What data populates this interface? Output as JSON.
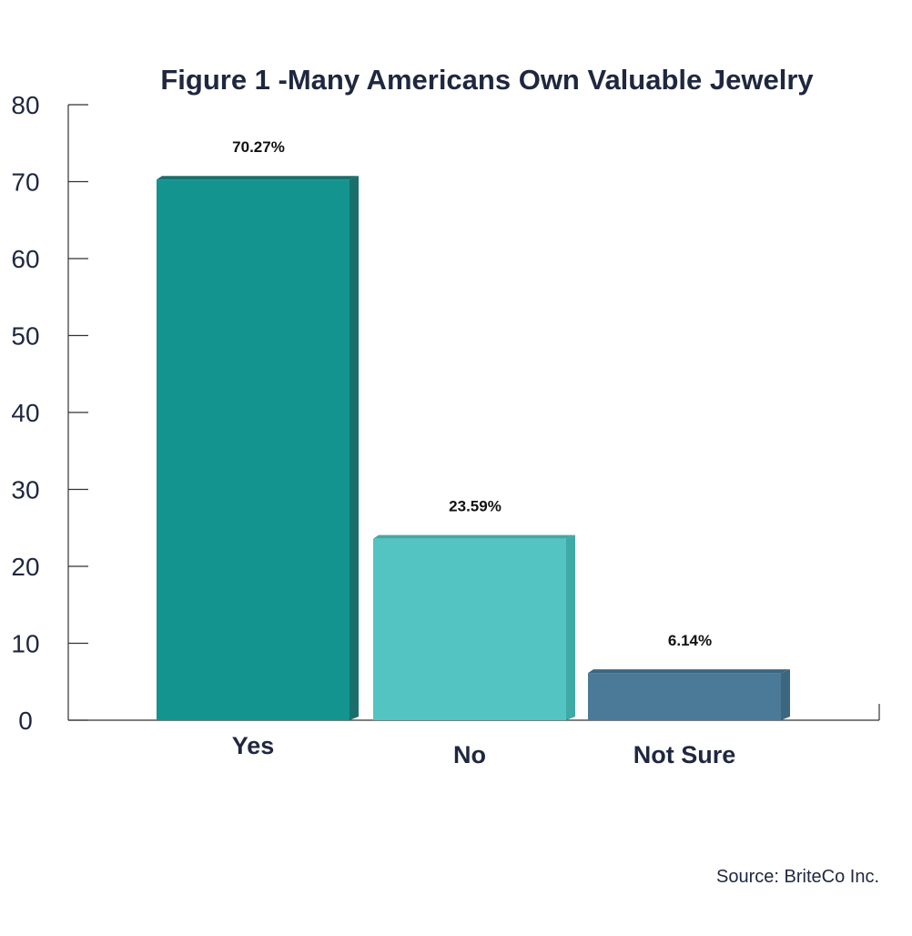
{
  "chart_data": {
    "type": "bar",
    "title": "Figure 1 -Many Americans Own Valuable Jewelry",
    "categories": [
      "Yes",
      "No",
      "Not Sure"
    ],
    "values": [
      70.27,
      23.59,
      6.14
    ],
    "data_labels": [
      "70.27%",
      "23.59%",
      "6.14%"
    ],
    "ylim": [
      0,
      80
    ],
    "yticks": [
      "0",
      "10",
      "20",
      "30",
      "40",
      "50",
      "60",
      "70",
      "80"
    ],
    "colors": [
      "#13948f",
      "#53c4c1",
      "#4b7a99"
    ],
    "side_colors": [
      "#1a6f6b",
      "#3fa9a5",
      "#3d6680"
    ],
    "grid": false,
    "legend": "none"
  },
  "source": "Source: BriteCo Inc."
}
